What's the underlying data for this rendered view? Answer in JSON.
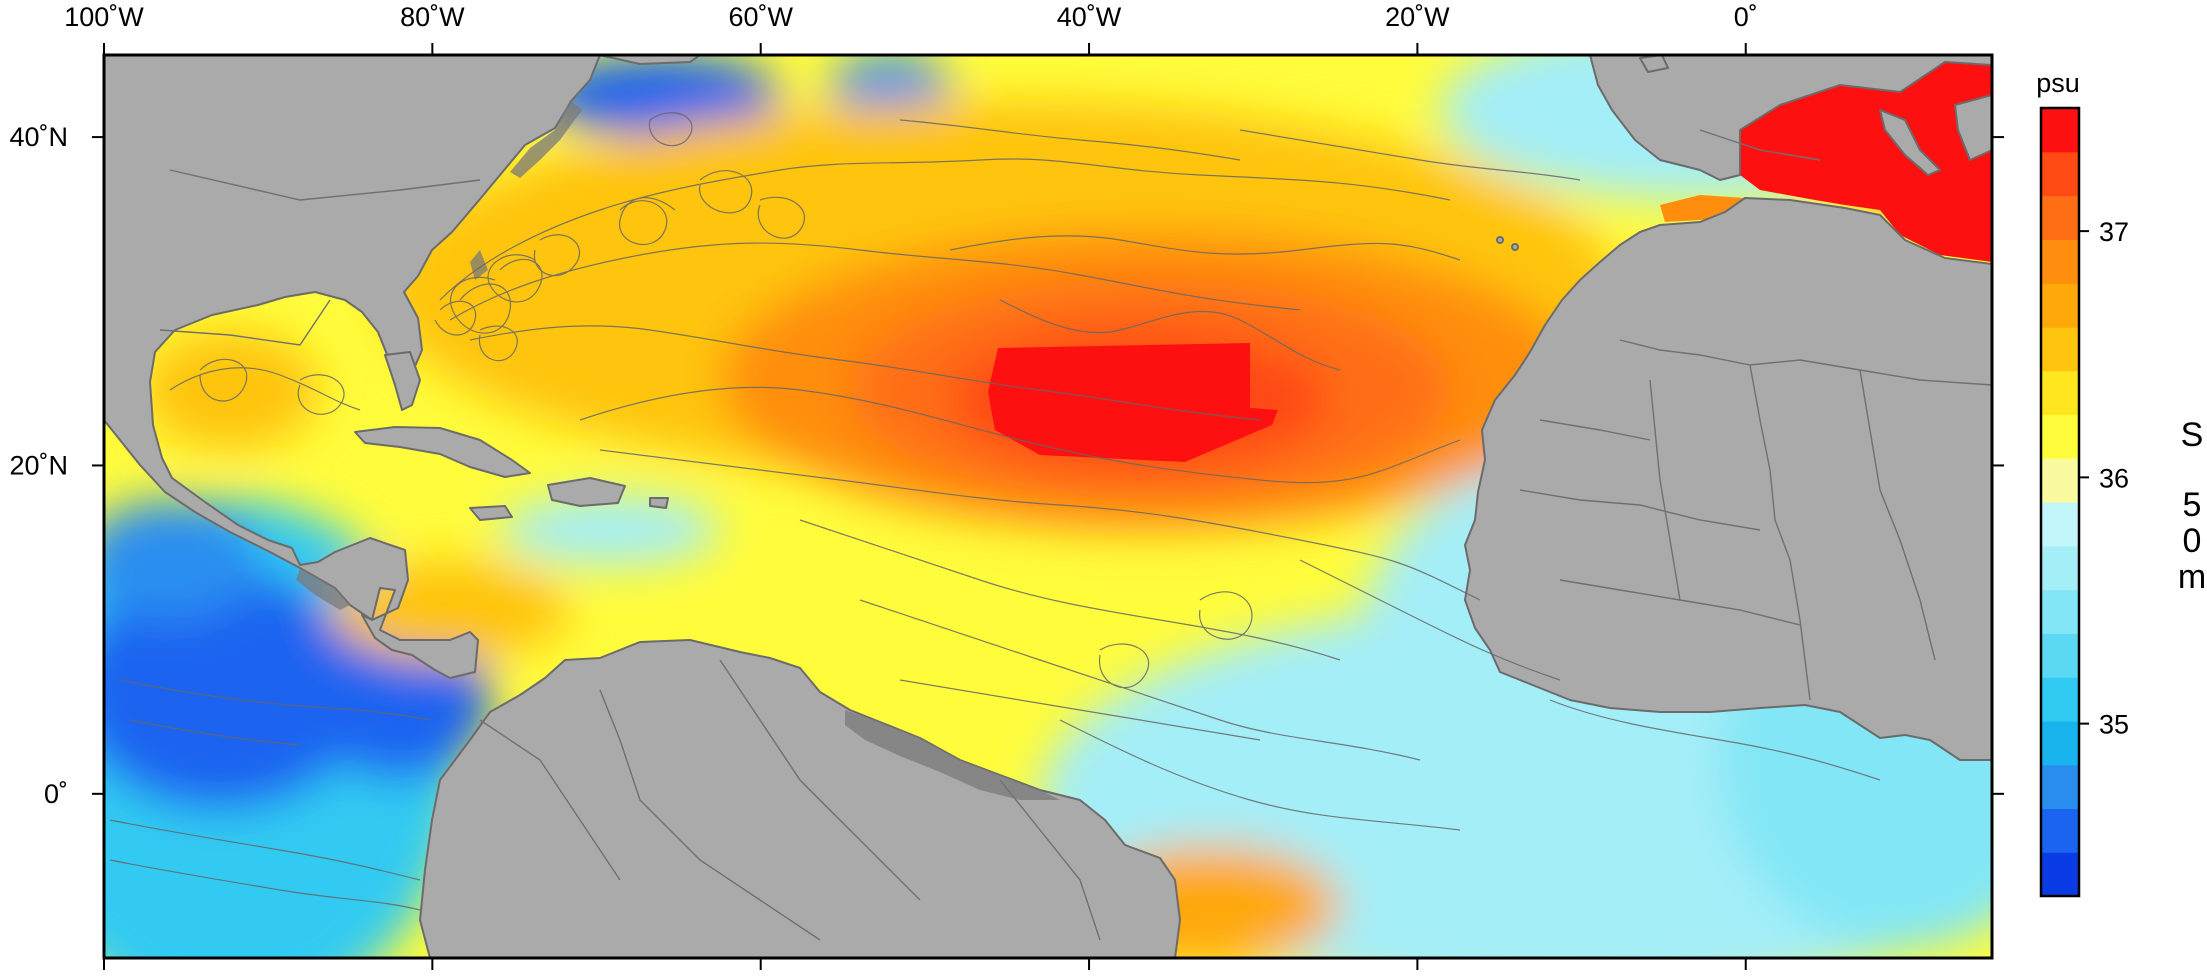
{
  "map": {
    "lon_range": [
      -100,
      15
    ],
    "lat_range": [
      -10,
      45
    ],
    "lon_ticks": [
      {
        "value": -100,
        "label": "100˚W"
      },
      {
        "value": -80,
        "label": "80˚W"
      },
      {
        "value": -60,
        "label": "60˚W"
      },
      {
        "value": -40,
        "label": "40˚W"
      },
      {
        "value": -20,
        "label": "20˚W"
      },
      {
        "value": 0,
        "label": "0˚"
      }
    ],
    "lat_ticks": [
      {
        "value": 40,
        "label": "40˚N"
      },
      {
        "value": 20,
        "label": "20˚N"
      },
      {
        "value": 0,
        "label": "0˚"
      }
    ],
    "land_color": "#aaaaaa",
    "border_color": "#6b6b6b"
  },
  "colorbar": {
    "unit": "psu",
    "variable_label": [
      "S",
      "5",
      "0",
      "m"
    ],
    "ticks": [
      {
        "value": 35,
        "label": "35"
      },
      {
        "value": 36,
        "label": "36"
      },
      {
        "value": 37,
        "label": "37"
      }
    ],
    "range": [
      34.3,
      37.5
    ],
    "colors": [
      "#0a3ce6",
      "#1a64f0",
      "#2a8ef0",
      "#18b4ee",
      "#30caf2",
      "#5ad8f4",
      "#82e6f6",
      "#a4eef8",
      "#c2f6fa",
      "#fafaa0",
      "#fffc3c",
      "#ffe61e",
      "#ffc40e",
      "#ffa80a",
      "#ff8e0e",
      "#ff6e14",
      "#ff4a14",
      "#ff1010"
    ]
  }
}
